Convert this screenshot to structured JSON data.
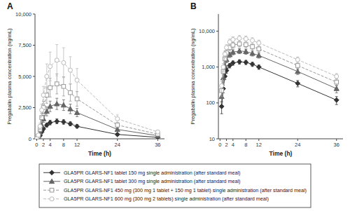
{
  "chart_data": [
    {
      "type": "line",
      "title": "A",
      "x": [
        0,
        0.5,
        1,
        1.5,
        2,
        3,
        4,
        6,
        8,
        10,
        12,
        24,
        36
      ],
      "xlim": [
        -0.5,
        38
      ],
      "xticks": [
        0,
        2,
        4,
        8,
        12,
        24,
        36
      ],
      "ylim": [
        0,
        10000
      ],
      "yticks": [
        0,
        {
          "value": 2500,
          "label": "2,500"
        },
        {
          "value": 5000,
          "label": "5,000"
        },
        {
          "value": 7500,
          "label": "7,500"
        },
        {
          "value": 10000,
          "label": "10,000"
        }
      ],
      "x_label": "Time (h)",
      "y_label": "Pregabalin plasma concentration (ng/mL)",
      "legend": "bottom",
      "series": [
        {
          "name": "GLA5PR GLARS-NF1 tablet 150 mg single administration (after standard meal)",
          "color": "#333333",
          "marker": "diamond",
          "line_style": "solid",
          "values": [
            0,
            80,
            250,
            550,
            800,
            1100,
            1300,
            1400,
            1350,
            1200,
            1000,
            350,
            120
          ],
          "errors": [
            0,
            30,
            60,
            100,
            130,
            160,
            180,
            190,
            180,
            160,
            140,
            70,
            30
          ]
        },
        {
          "name": "GLA5PR GLARS-NF1 tablet 300 mg single administration (after standard meal)",
          "color": "#666666",
          "marker": "triangle",
          "line_style": "solid",
          "values": [
            0,
            150,
            500,
            1100,
            1600,
            2200,
            2600,
            2800,
            2700,
            2400,
            2100,
            750,
            250
          ],
          "errors": [
            0,
            50,
            120,
            200,
            280,
            360,
            420,
            450,
            430,
            380,
            330,
            130,
            60
          ]
        },
        {
          "name": "GLA5PR GLARS-NF1 450 mg (300 mg 1 tablet + 150 mg 1 tablet) single administration (after standard meal)",
          "color": "#999999",
          "marker": "square-open",
          "line_style": "dashed",
          "values": [
            0,
            220,
            750,
            1700,
            2500,
            3500,
            4100,
            4400,
            4200,
            3700,
            3200,
            1100,
            380
          ],
          "errors": [
            0,
            70,
            180,
            350,
            500,
            650,
            750,
            800,
            770,
            680,
            590,
            200,
            80
          ]
        },
        {
          "name": "GLA5PR GLARS-NF1 600 mg (300 mg 2 tablets) single administration (after standard meal)",
          "color": "#bbbbbb",
          "marker": "circle-open",
          "line_style": "dashed",
          "values": [
            0,
            300,
            1000,
            2300,
            3500,
            5000,
            5800,
            6300,
            6100,
            5500,
            4700,
            1600,
            550
          ],
          "errors": [
            0,
            100,
            250,
            480,
            700,
            1000,
            1150,
            1250,
            1200,
            1080,
            930,
            310,
            110
          ]
        }
      ]
    },
    {
      "type": "line",
      "title": "B",
      "log": "y",
      "x": [
        0,
        0.5,
        1,
        1.5,
        2,
        3,
        4,
        6,
        8,
        10,
        12,
        24,
        36
      ],
      "xlim": [
        -0.5,
        38
      ],
      "xticks": [
        0,
        2,
        4,
        8,
        12,
        24,
        36
      ],
      "ylim": [
        10,
        30000
      ],
      "yticks": [
        10,
        100,
        {
          "value": 1000,
          "label": "1,000"
        },
        {
          "value": 10000,
          "label": "10,000"
        }
      ],
      "x_label": "Time (h)",
      "y_label": "Pregabalin plasma concentration (ng/mL)",
      "series": [
        {
          "color": "#333333",
          "marker": "diamond",
          "line_style": "solid",
          "values": [
            null,
            80,
            250,
            550,
            800,
            1100,
            1300,
            1400,
            1350,
            1200,
            1000,
            350,
            120
          ],
          "errors": [
            null,
            30,
            60,
            100,
            130,
            160,
            180,
            190,
            180,
            160,
            140,
            70,
            30
          ]
        },
        {
          "color": "#666666",
          "marker": "triangle",
          "line_style": "solid",
          "values": [
            null,
            150,
            500,
            1100,
            1600,
            2200,
            2600,
            2800,
            2700,
            2400,
            2100,
            750,
            250
          ],
          "errors": [
            null,
            50,
            120,
            200,
            280,
            360,
            420,
            450,
            430,
            380,
            330,
            130,
            60
          ]
        },
        {
          "color": "#999999",
          "marker": "square-open",
          "line_style": "dashed",
          "values": [
            null,
            220,
            750,
            1700,
            2500,
            3500,
            4100,
            4400,
            4200,
            3700,
            3200,
            1100,
            380
          ],
          "errors": [
            null,
            70,
            180,
            350,
            500,
            650,
            750,
            800,
            770,
            680,
            590,
            200,
            80
          ]
        },
        {
          "color": "#bbbbbb",
          "marker": "circle-open",
          "line_style": "dashed",
          "values": [
            null,
            300,
            1000,
            2300,
            3500,
            5000,
            5800,
            6300,
            6100,
            5500,
            4700,
            1600,
            550
          ],
          "errors": [
            null,
            100,
            250,
            480,
            700,
            1000,
            1150,
            1250,
            1200,
            1080,
            930,
            310,
            110
          ]
        }
      ]
    }
  ]
}
